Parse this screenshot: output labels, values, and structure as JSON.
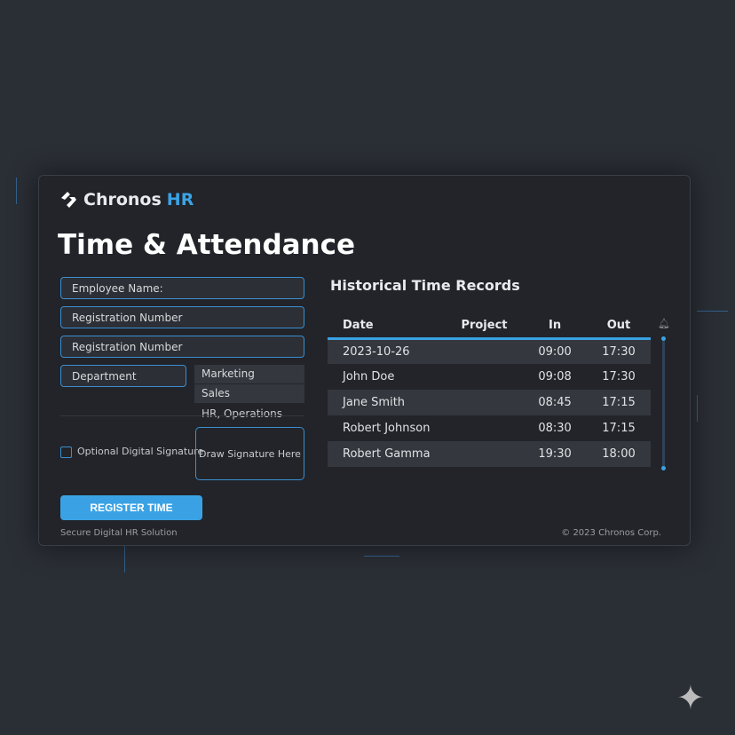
{
  "brand": {
    "name": "Chronos",
    "accent": "HR"
  },
  "page_title": "Time & Attendance",
  "form": {
    "employee_name": "Employee Name:",
    "registration_1": "Registration Number",
    "registration_2": "Registration Number",
    "department": "Department",
    "department_options": [
      "Marketing",
      "Sales",
      "HR,  Operations"
    ],
    "signature_checkbox": "Optional Digital Signature",
    "signature_pad": "Draw Signature Here",
    "register_button": "REGISTER TIME",
    "footer_left": "Secure Digital HR Solution"
  },
  "records": {
    "title": "Historical Time Records",
    "columns": [
      "Date",
      "Project",
      "In",
      "Out"
    ],
    "rows": [
      {
        "date": "2023-10-26",
        "project": "",
        "in": "09:00",
        "out": "17:30"
      },
      {
        "date": "John Doe",
        "project": "",
        "in": "09:08",
        "out": "17:30"
      },
      {
        "date": "Jane Smith",
        "project": "",
        "in": "08:45",
        "out": "17:15"
      },
      {
        "date": "Robert Johnson",
        "project": "",
        "in": "08:30",
        "out": "17:15"
      },
      {
        "date": "Robert Gamma",
        "project": "",
        "in": "19:30",
        "out": "18:00"
      }
    ]
  },
  "footer_right": "© 2023 Chronos Corp.",
  "colors": {
    "accent": "#3aa2e4",
    "panel": "#222429",
    "background": "#2a2e35"
  }
}
